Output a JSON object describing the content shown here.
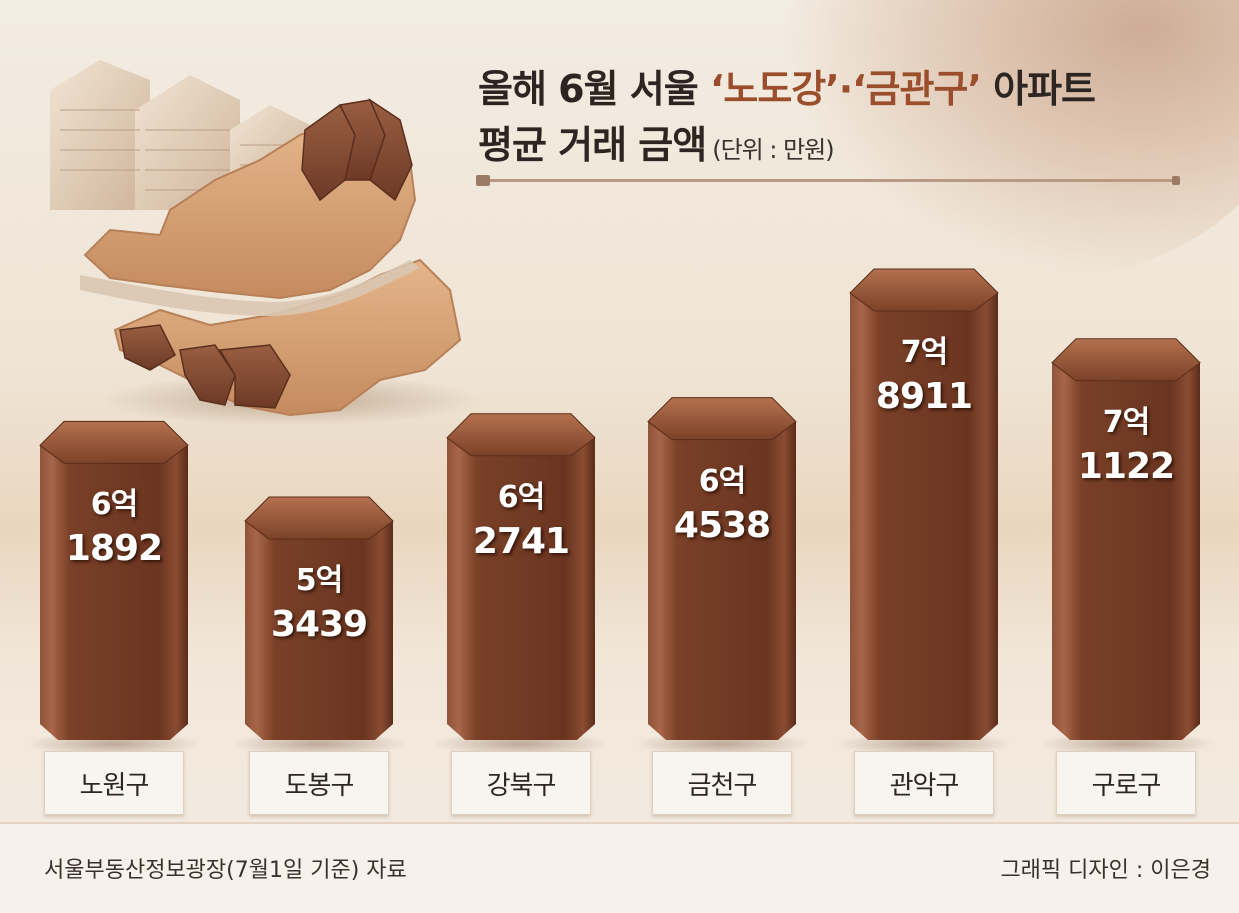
{
  "title": {
    "part1": "올해 6월 서울 ",
    "highlight": "‘노도강’·‘금관구’",
    "part2": " 아파트",
    "line2": "평균 거래 금액",
    "unit": "(단위 : 만원)"
  },
  "footer": {
    "source": "서울부동산정보광장(7월1일 기준) 자료",
    "credit": "그래픽 디자인 : 이은경"
  },
  "colors": {
    "bar": "#6e3a24",
    "bar_top": "#8a4a30",
    "highlight_text": "#9a4e2c"
  },
  "chart_data": {
    "type": "bar",
    "title": "올해 6월 서울 ‘노도강’·‘금관구’ 아파트 평균 거래 금액",
    "unit": "만원",
    "categories": [
      "노원구",
      "도봉구",
      "강북구",
      "금천구",
      "관악구",
      "구로구"
    ],
    "values": [
      61892,
      53439,
      62741,
      64538,
      78911,
      71122
    ],
    "value_labels": [
      {
        "eok": "6억",
        "rest": "1892"
      },
      {
        "eok": "5억",
        "rest": "3439"
      },
      {
        "eok": "6억",
        "rest": "2741"
      },
      {
        "eok": "6억",
        "rest": "4538"
      },
      {
        "eok": "7억",
        "rest": "8911"
      },
      {
        "eok": "7억",
        "rest": "1122"
      }
    ]
  }
}
